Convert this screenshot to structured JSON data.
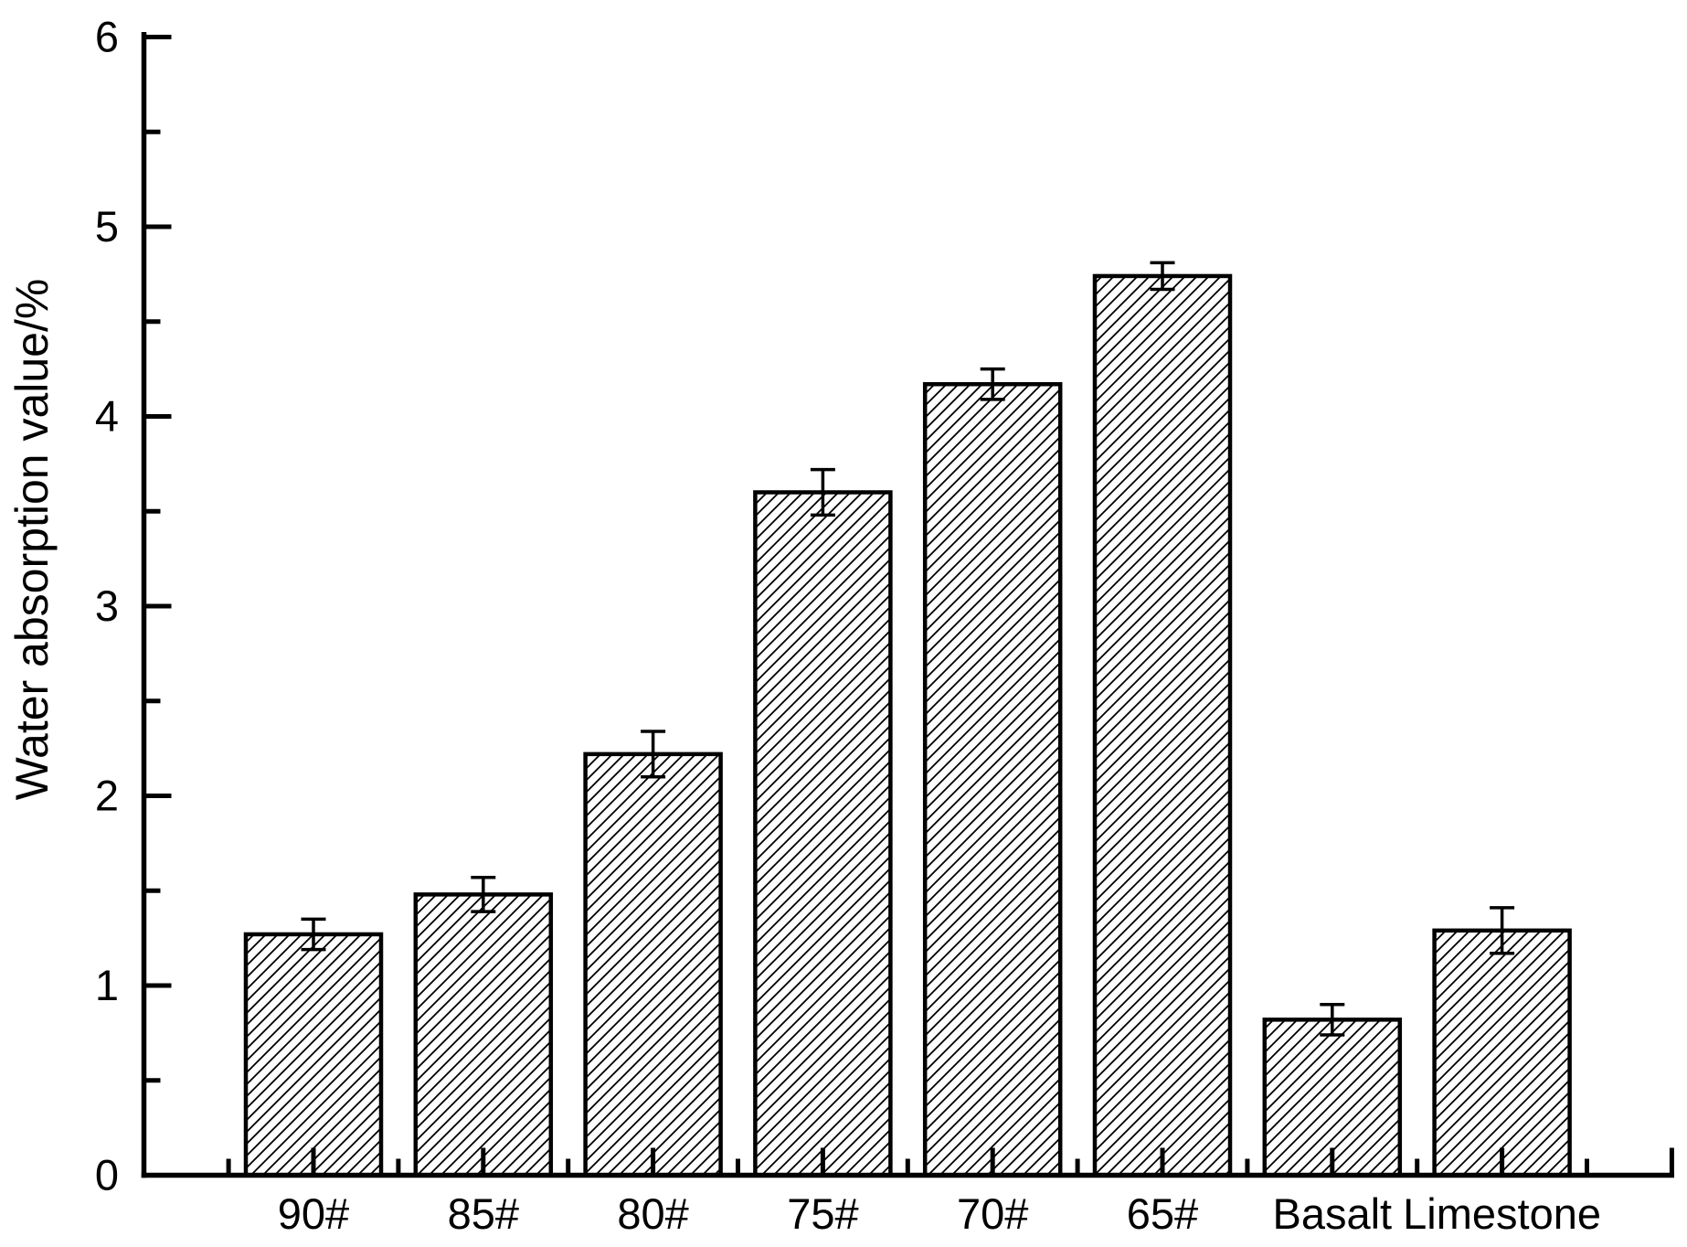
{
  "page": {
    "background": "#ffffff",
    "ink_color": "#000000"
  },
  "chart_data": {
    "type": "bar",
    "title": "",
    "xlabel": "",
    "ylabel": "Water absorption value/%",
    "categories": [
      "90#",
      "85#",
      "80#",
      "75#",
      "70#",
      "65#",
      "Basalt",
      "Limestone"
    ],
    "series": [
      {
        "name": "Water absorption value",
        "values": [
          1.27,
          1.48,
          2.22,
          3.6,
          4.17,
          4.74,
          0.82,
          1.29
        ],
        "errors": [
          0.08,
          0.09,
          0.12,
          0.12,
          0.08,
          0.07,
          0.08,
          0.12
        ]
      }
    ],
    "ylim": [
      0,
      6
    ],
    "y_major_ticks": [
      "0",
      "1",
      "2",
      "3",
      "4",
      "5",
      "6"
    ],
    "y_minor_interval": 0.5,
    "grid": false,
    "legend": "none",
    "error_bar_caps": true,
    "bar_fill": "white-with-black-diagonal-hatch",
    "bar_edge_color": "#000000",
    "hatch_color": "#000000",
    "axis_color": "#000000",
    "text_color": "#000000"
  }
}
